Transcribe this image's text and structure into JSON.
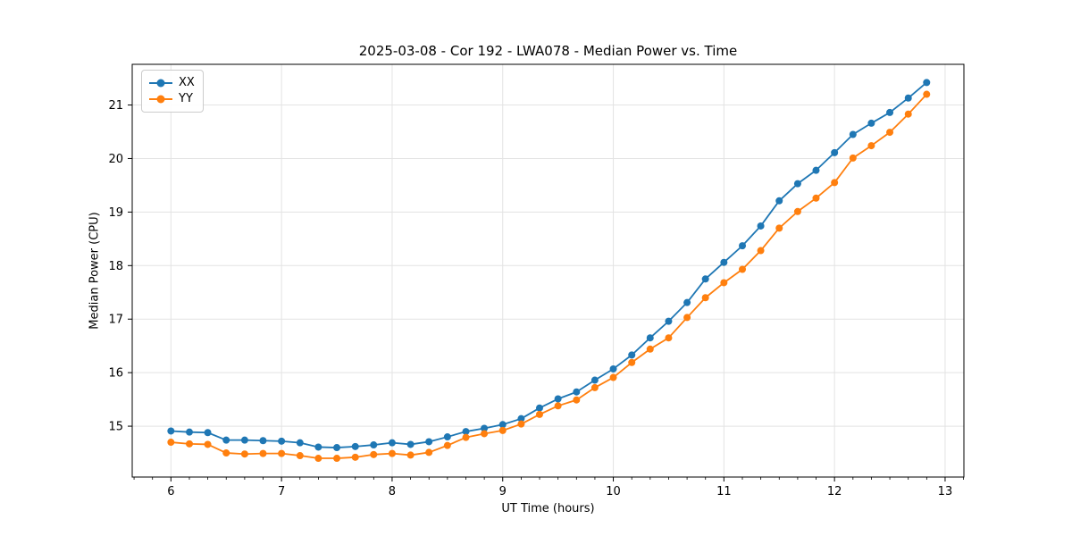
{
  "figure": {
    "background": "#ffffff"
  },
  "chart_data": {
    "type": "line",
    "title": "2025-03-08 - Cor 192 - LWA078 - Median Power vs. Time",
    "xlabel": "UT Time (hours)",
    "ylabel": "Median Power (CPU)",
    "xlim": [
      5.65,
      13.17
    ],
    "ylim": [
      14.05,
      21.76
    ],
    "x_ticks": [
      6,
      7,
      8,
      9,
      10,
      11,
      12,
      13
    ],
    "y_ticks": [
      15,
      16,
      17,
      18,
      19,
      20,
      21
    ],
    "x_minor_tick_step": 0.16667,
    "grid": true,
    "legend": {
      "position": "upper left"
    },
    "x": [
      6.0,
      6.167,
      6.333,
      6.5,
      6.667,
      6.833,
      7.0,
      7.167,
      7.333,
      7.5,
      7.667,
      7.833,
      8.0,
      8.167,
      8.333,
      8.5,
      8.667,
      8.833,
      9.0,
      9.167,
      9.333,
      9.5,
      9.667,
      9.833,
      10.0,
      10.167,
      10.333,
      10.5,
      10.667,
      10.833,
      11.0,
      11.167,
      11.333,
      11.5,
      11.667,
      11.833,
      12.0,
      12.167,
      12.333,
      12.5,
      12.667,
      12.833
    ],
    "series": [
      {
        "name": "XX",
        "color": "#1f77b4",
        "marker": "circle",
        "values": [
          14.91,
          14.89,
          14.88,
          14.74,
          14.74,
          14.73,
          14.72,
          14.69,
          14.61,
          14.6,
          14.62,
          14.65,
          14.69,
          14.66,
          14.71,
          14.8,
          14.9,
          14.96,
          15.03,
          15.14,
          15.34,
          15.51,
          15.64,
          15.86,
          16.07,
          16.33,
          16.65,
          16.96,
          17.31,
          17.75,
          18.06,
          18.37,
          18.74,
          19.21,
          19.53,
          19.78,
          20.11,
          20.45,
          20.66,
          20.86,
          21.13,
          21.42
        ]
      },
      {
        "name": "YY",
        "color": "#ff7f0e",
        "marker": "circle",
        "values": [
          14.7,
          14.67,
          14.66,
          14.5,
          14.48,
          14.49,
          14.49,
          14.45,
          14.4,
          14.4,
          14.42,
          14.47,
          14.49,
          14.46,
          14.51,
          14.64,
          14.79,
          14.86,
          14.92,
          15.04,
          15.22,
          15.38,
          15.49,
          15.72,
          15.91,
          16.19,
          16.44,
          16.65,
          17.03,
          17.4,
          17.68,
          17.93,
          18.28,
          18.7,
          19.01,
          19.26,
          19.55,
          20.01,
          20.24,
          20.49,
          20.83,
          21.2
        ]
      }
    ]
  },
  "style_colors": {
    "grid": "#e3e3e3",
    "spine": "#000000",
    "tick": "#000000"
  }
}
